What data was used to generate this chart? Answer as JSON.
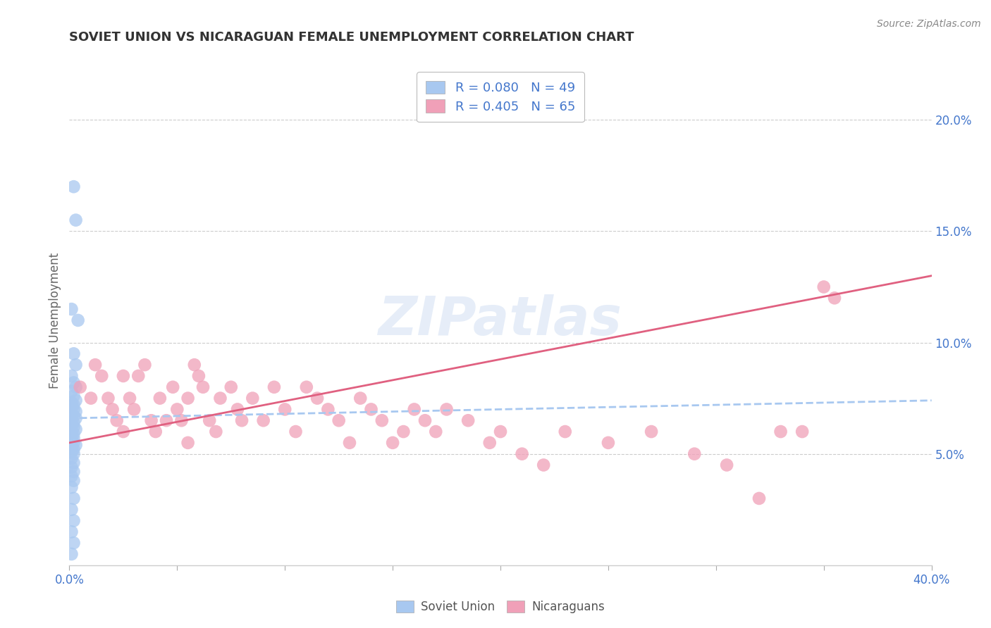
{
  "title": "SOVIET UNION VS NICARAGUAN FEMALE UNEMPLOYMENT CORRELATION CHART",
  "source": "Source: ZipAtlas.com",
  "ylabel": "Female Unemployment",
  "xlim": [
    0.0,
    0.4
  ],
  "ylim": [
    0.0,
    0.22
  ],
  "xticks": [
    0.0,
    0.05,
    0.1,
    0.15,
    0.2,
    0.25,
    0.3,
    0.35,
    0.4
  ],
  "yticks_right": [
    0.05,
    0.1,
    0.15,
    0.2
  ],
  "ytick_right_labels": [
    "5.0%",
    "10.0%",
    "15.0%",
    "20.0%"
  ],
  "soviet_color": "#A8C8F0",
  "nicaraguan_color": "#F0A0B8",
  "soviet_line_color": "#A8C8F0",
  "nicaraguan_line_color": "#E06080",
  "soviet_R": 0.08,
  "soviet_N": 49,
  "nicaraguan_R": 0.405,
  "nicaraguan_N": 65,
  "watermark": "ZIPatlas",
  "soviet_x": [
    0.002,
    0.003,
    0.001,
    0.004,
    0.002,
    0.003,
    0.001,
    0.002,
    0.003,
    0.001,
    0.002,
    0.003,
    0.001,
    0.002,
    0.001,
    0.002,
    0.003,
    0.001,
    0.002,
    0.003,
    0.001,
    0.002,
    0.001,
    0.002,
    0.003,
    0.001,
    0.002,
    0.001,
    0.002,
    0.001,
    0.002,
    0.003,
    0.001,
    0.002,
    0.001,
    0.002,
    0.001,
    0.002,
    0.001,
    0.002,
    0.001,
    0.002,
    0.001,
    0.002,
    0.001,
    0.002,
    0.001,
    0.002,
    0.001
  ],
  "soviet_y": [
    0.17,
    0.155,
    0.115,
    0.11,
    0.095,
    0.09,
    0.085,
    0.082,
    0.08,
    0.078,
    0.076,
    0.074,
    0.073,
    0.072,
    0.071,
    0.07,
    0.069,
    0.068,
    0.067,
    0.066,
    0.065,
    0.064,
    0.063,
    0.062,
    0.061,
    0.06,
    0.059,
    0.058,
    0.057,
    0.056,
    0.055,
    0.054,
    0.053,
    0.052,
    0.051,
    0.05,
    0.048,
    0.046,
    0.044,
    0.042,
    0.04,
    0.038,
    0.035,
    0.03,
    0.025,
    0.02,
    0.015,
    0.01,
    0.005
  ],
  "nicaraguan_x": [
    0.005,
    0.01,
    0.012,
    0.015,
    0.018,
    0.02,
    0.022,
    0.025,
    0.025,
    0.028,
    0.03,
    0.032,
    0.035,
    0.038,
    0.04,
    0.042,
    0.045,
    0.048,
    0.05,
    0.052,
    0.055,
    0.055,
    0.058,
    0.06,
    0.062,
    0.065,
    0.068,
    0.07,
    0.075,
    0.078,
    0.08,
    0.085,
    0.09,
    0.095,
    0.1,
    0.105,
    0.11,
    0.115,
    0.12,
    0.125,
    0.13,
    0.135,
    0.14,
    0.145,
    0.15,
    0.155,
    0.16,
    0.165,
    0.17,
    0.175,
    0.185,
    0.195,
    0.2,
    0.21,
    0.22,
    0.23,
    0.25,
    0.27,
    0.29,
    0.305,
    0.32,
    0.33,
    0.34,
    0.35,
    0.355
  ],
  "nicaraguan_y": [
    0.08,
    0.075,
    0.09,
    0.085,
    0.075,
    0.07,
    0.065,
    0.085,
    0.06,
    0.075,
    0.07,
    0.085,
    0.09,
    0.065,
    0.06,
    0.075,
    0.065,
    0.08,
    0.07,
    0.065,
    0.055,
    0.075,
    0.09,
    0.085,
    0.08,
    0.065,
    0.06,
    0.075,
    0.08,
    0.07,
    0.065,
    0.075,
    0.065,
    0.08,
    0.07,
    0.06,
    0.08,
    0.075,
    0.07,
    0.065,
    0.055,
    0.075,
    0.07,
    0.065,
    0.055,
    0.06,
    0.07,
    0.065,
    0.06,
    0.07,
    0.065,
    0.055,
    0.06,
    0.05,
    0.045,
    0.06,
    0.055,
    0.06,
    0.05,
    0.045,
    0.03,
    0.06,
    0.06,
    0.125,
    0.12
  ],
  "soviet_trend_x": [
    0.0,
    0.4
  ],
  "soviet_trend_y": [
    0.066,
    0.074
  ],
  "nicaraguan_trend_x": [
    0.0,
    0.4
  ],
  "nicaraguan_trend_y": [
    0.055,
    0.13
  ],
  "background_color": "#FFFFFF",
  "grid_color": "#CCCCCC",
  "title_color": "#333333",
  "title_fontsize": 13,
  "axis_label_color": "#666666"
}
